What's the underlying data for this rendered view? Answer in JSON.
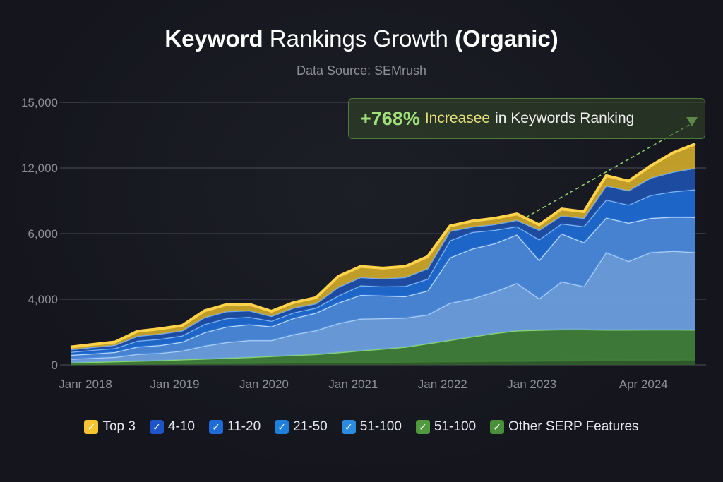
{
  "title": {
    "part1": "Keyword",
    "part2": "Rankings Growth",
    "part3": "(Organic)"
  },
  "subtitle": "Data Source: SEMrush",
  "annotation": {
    "percent": "+768%",
    "highlight": "Increasee",
    "rest": "in Keywords Ranking",
    "color": "#9fe07a"
  },
  "chart_data": {
    "type": "area",
    "stacked": true,
    "title": "Keyword Rankings Growth (Organic)",
    "subtitle": "Data Source: SEMrush",
    "xlabel": "",
    "ylabel": "",
    "y_ticks": [
      0,
      4000,
      6000,
      12000,
      15000
    ],
    "y_tick_labels": [
      "0",
      "4,000",
      "6,000",
      "12,000",
      "15,000"
    ],
    "ylim": [
      0,
      15000
    ],
    "grid": true,
    "legend_position": "bottom",
    "x_ticks": [
      "2018-01",
      "2019-01",
      "2020-01",
      "2021-01",
      "2022-01",
      "2023-01",
      "2024-04"
    ],
    "x_tick_labels": [
      "Janr 2018",
      "Jan 2019",
      "Jan 2020",
      "Jan 2021",
      "Jan 2022",
      "Jan 2023",
      "Apr 2024"
    ],
    "x": [
      "2017-11",
      "2018-02",
      "2018-05",
      "2018-08",
      "2018-11",
      "2019-02",
      "2019-05",
      "2019-08",
      "2019-11",
      "2020-02",
      "2020-05",
      "2020-08",
      "2020-11",
      "2021-02",
      "2021-05",
      "2021-08",
      "2021-11",
      "2022-02",
      "2022-05",
      "2022-08",
      "2022-11",
      "2023-02",
      "2023-05",
      "2023-08",
      "2023-11",
      "2024-02",
      "2024-05",
      "2024-08",
      "2024-11"
    ],
    "series": [
      {
        "name": "Other SERP Features",
        "color": "#2f5e2c",
        "values": [
          40,
          50,
          60,
          70,
          80,
          90,
          100,
          110,
          120,
          130,
          140,
          150,
          160,
          170,
          180,
          190,
          200,
          210,
          220,
          230,
          240,
          250,
          260,
          270,
          280,
          290,
          300,
          310,
          320
        ]
      },
      {
        "name": "51-100",
        "color": "#3f7d3a",
        "values": [
          100,
          120,
          150,
          170,
          200,
          240,
          270,
          310,
          350,
          400,
          450,
          500,
          600,
          700,
          800,
          900,
          1100,
          1300,
          1500,
          1700,
          1850,
          1880,
          1900,
          1890,
          1860,
          1850,
          1850,
          1840,
          1820
        ]
      },
      {
        "name": "51-100",
        "color": "#6b9fdf",
        "values": [
          220,
          250,
          270,
          420,
          440,
          530,
          790,
          960,
          1030,
          970,
          1270,
          1450,
          1770,
          1940,
          1860,
          1780,
          1760,
          2260,
          2300,
          2300,
          2400,
          1890,
          2380,
          2230,
          3290,
          3020,
          3280,
          3320,
          3290
        ]
      },
      {
        "name": "21-50",
        "color": "#4a88db",
        "values": [
          240,
          270,
          300,
          450,
          480,
          540,
          820,
          950,
          970,
          840,
          990,
          1070,
          1260,
          1320,
          1270,
          1220,
          1200,
          1500,
          1520,
          1470,
          1480,
          1170,
          1460,
          1340,
          2020,
          1820,
          1990,
          2060,
          2080
        ]
      },
      {
        "name": "11-20",
        "color": "#1f69d2",
        "values": [
          190,
          220,
          240,
          360,
          380,
          380,
          500,
          510,
          450,
          340,
          340,
          310,
          320,
          290,
          280,
          310,
          360,
          520,
          600,
          630,
          690,
          630,
          910,
          930,
          1650,
          1650,
          2090,
          2320,
          2520
        ]
      },
      {
        "name": "4-10",
        "color": "#1d4ea8",
        "values": [
          150,
          170,
          190,
          290,
          310,
          310,
          410,
          420,
          390,
          290,
          290,
          260,
          260,
          250,
          240,
          270,
          320,
          440,
          490,
          520,
          570,
          510,
          730,
          760,
          1280,
          1300,
          1590,
          1790,
          1970
        ]
      },
      {
        "name": "Top 3",
        "color": "#c9a42a",
        "values": [
          150,
          170,
          190,
          290,
          310,
          310,
          410,
          420,
          390,
          300,
          320,
          310,
          330,
          330,
          320,
          330,
          360,
          470,
          520,
          550,
          570,
          470,
          610,
          580,
          920,
          870,
          1000,
          1060,
          1100
        ]
      }
    ]
  },
  "legend": [
    {
      "label": "Top 3",
      "color": "#f5c430"
    },
    {
      "label": "4-10",
      "color": "#1d55c8"
    },
    {
      "label": "11-20",
      "color": "#1e6ad6"
    },
    {
      "label": "21-50",
      "color": "#1f80dc"
    },
    {
      "label": "51-100",
      "color": "#2a8be0"
    },
    {
      "label": "51-100",
      "color": "#4f9a3c"
    },
    {
      "label": "Other SERP Features",
      "color": "#4a8f3a"
    }
  ]
}
